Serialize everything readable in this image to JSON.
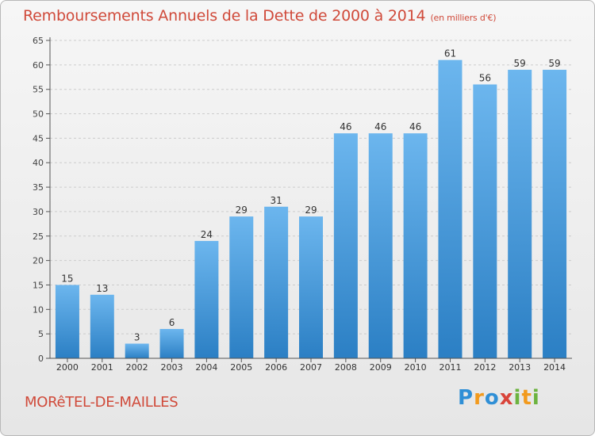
{
  "title": "Remboursements Annuels de la Dette de 2000 à 2014",
  "subtitle": "(en milliers d'€)",
  "commune": "MORêTEL-DE-MAILLES",
  "logo": "Proxiti",
  "colors": {
    "title": "#d04a3a",
    "bar_light": "#6cb6ee",
    "bar_dark": "#2b7fc4",
    "grid": "#cccccc"
  },
  "chart_data": {
    "type": "bar",
    "title": "Remboursements Annuels de la Dette de 2000 à 2014",
    "ylabel": "en milliers d'€",
    "xlabel": "",
    "categories": [
      "2000",
      "2001",
      "2002",
      "2003",
      "2004",
      "2005",
      "2006",
      "2007",
      "2008",
      "2009",
      "2010",
      "2011",
      "2012",
      "2013",
      "2014"
    ],
    "values": [
      15,
      13,
      3,
      6,
      24,
      29,
      31,
      29,
      46,
      46,
      46,
      61,
      56,
      59,
      59
    ],
    "ylim": [
      0,
      65
    ],
    "yticks": [
      0,
      5,
      10,
      15,
      20,
      25,
      30,
      35,
      40,
      45,
      50,
      55,
      60,
      65
    ],
    "grid": true,
    "legend": "none"
  }
}
